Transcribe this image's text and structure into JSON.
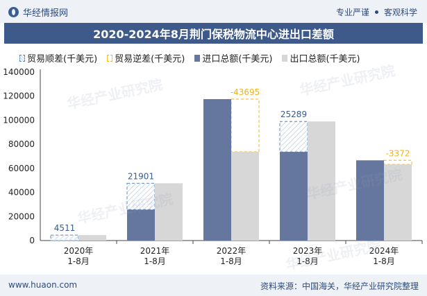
{
  "header": {
    "brand": "华经情报网",
    "tag1": "专业严谨",
    "tag2": "客观科学"
  },
  "footer": {
    "site": "www.huaon.com",
    "source": "资料来源：中国海关，华经产业研究院整理"
  },
  "watermark": "华经产业研究院",
  "colors": {
    "import": "#66779f",
    "export": "#d7d7d7",
    "surplus_border": "#5b86b8",
    "deficit_border": "#f2b418",
    "surplus_label": "#3a5d8a",
    "deficit_label": "#f2b418"
  },
  "chart_data": {
    "type": "bar",
    "title": "2020-2024年8月荆门保税物流中心进出口差额",
    "categories": [
      "2020年\n1-8月",
      "2021年\n1-8月",
      "2022年\n1-8月",
      "2023年\n1-8月",
      "2024年\n1-8月"
    ],
    "series": [
      {
        "name": "进口总额(千美元)",
        "values": [
          0,
          25690,
          117543,
          73694,
          66672
        ]
      },
      {
        "name": "出口总额(千美元)",
        "values": [
          4511,
          47591,
          73848,
          98983,
          63300
        ]
      }
    ],
    "balance": {
      "surplus_name": "贸易顺差(千美元)",
      "deficit_name": "贸易逆差(千美元)",
      "values": [
        4511,
        21901,
        -43695,
        25289,
        -3372
      ]
    },
    "ylim": [
      0,
      140000
    ],
    "yticks": [
      0,
      20000,
      40000,
      60000,
      80000,
      100000,
      120000,
      140000
    ],
    "xlabel": "",
    "ylabel": ""
  }
}
